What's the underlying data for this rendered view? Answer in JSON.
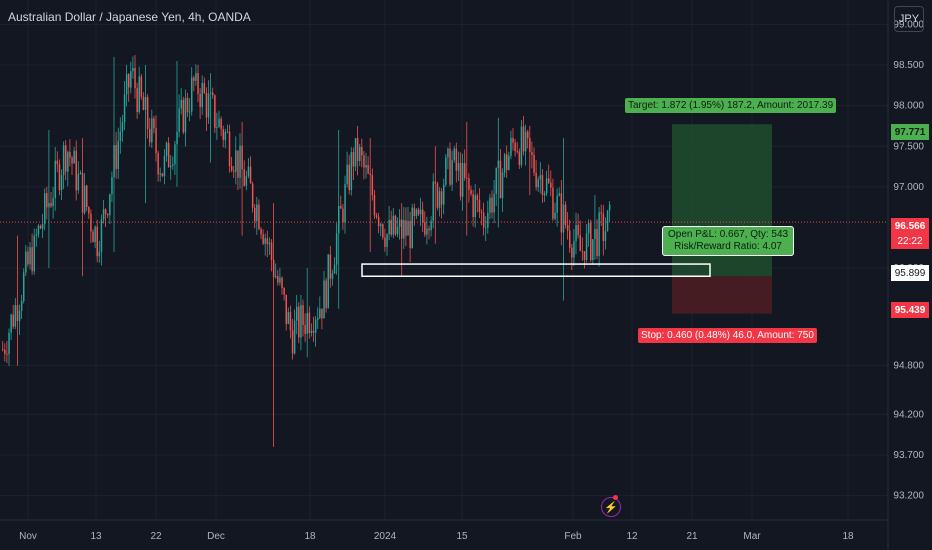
{
  "header": {
    "title": "Australian Dollar / Japanese Yen, 4h, OANDA",
    "currency": "JPY"
  },
  "position_tool": {
    "target_label": "Target: 1.872 (1.95%) 187.2, Amount: 2017.39",
    "stop_label": "Stop: 0.460 (0.48%) 46.0, Amount: 750",
    "pnl_line1": "Open P&L: 0.667, Qty: 543",
    "pnl_line2": "Risk/Reward Ratio: 4.07",
    "entry": 95.899,
    "target": 97.771,
    "stop": 95.439
  },
  "price_labels": {
    "target": "97.771",
    "last": "96.566",
    "countdown": "22:22",
    "entry": "95.899",
    "stop": "95.439"
  },
  "colors": {
    "up": "#26a69a",
    "down": "#ef5350",
    "target_zone": "#1e4a2e",
    "stop_zone": "#4a1d22",
    "bg": "#131722"
  },
  "chart_data": {
    "type": "candlestick",
    "title": "Australian Dollar / Japanese Yen, 4h, OANDA",
    "ylim": [
      92.9,
      99.3
    ],
    "y_ticks": [
      "99.000",
      "98.500",
      "98.000",
      "97.500",
      "97.000",
      "96.000",
      "94.800",
      "94.200",
      "93.700",
      "93.200"
    ],
    "x_ticks": [
      "Nov",
      "13",
      "22",
      "Dec",
      "18",
      "2024",
      "15",
      "Feb",
      "12",
      "21",
      "Mar",
      "18"
    ],
    "last_price": 96.566,
    "support_zone": [
      95.9,
      96.05
    ],
    "series": [
      {
        "start": 95.0,
        "end": 96.3,
        "low": 94.8,
        "high": 96.4
      },
      {
        "start": 96.3,
        "end": 97.5,
        "low": 96.0,
        "high": 97.7
      },
      {
        "start": 97.5,
        "end": 96.3,
        "low": 95.9,
        "high": 97.6
      },
      {
        "start": 96.3,
        "end": 98.4,
        "low": 96.2,
        "high": 98.6
      },
      {
        "start": 98.4,
        "end": 97.2,
        "low": 96.8,
        "high": 98.5
      },
      {
        "start": 97.2,
        "end": 98.3,
        "low": 97.0,
        "high": 98.55
      },
      {
        "start": 98.3,
        "end": 97.6,
        "low": 97.3,
        "high": 98.4
      },
      {
        "start": 97.6,
        "end": 96.7,
        "low": 96.4,
        "high": 97.8
      },
      {
        "start": 96.7,
        "end": 95.2,
        "low": 93.8,
        "high": 96.8
      },
      {
        "start": 95.2,
        "end": 95.6,
        "low": 94.9,
        "high": 96.0
      },
      {
        "start": 95.6,
        "end": 97.5,
        "low": 95.5,
        "high": 97.7
      },
      {
        "start": 97.5,
        "end": 96.4,
        "low": 96.2,
        "high": 97.6
      },
      {
        "start": 96.4,
        "end": 96.5,
        "low": 95.9,
        "high": 96.8
      },
      {
        "start": 96.5,
        "end": 97.3,
        "low": 96.3,
        "high": 97.5
      },
      {
        "start": 97.3,
        "end": 96.6,
        "low": 96.4,
        "high": 97.8
      },
      {
        "start": 96.6,
        "end": 97.6,
        "low": 96.5,
        "high": 97.85
      },
      {
        "start": 97.6,
        "end": 97.0,
        "low": 96.9,
        "high": 97.75
      },
      {
        "start": 97.0,
        "end": 96.2,
        "low": 95.6,
        "high": 97.6
      },
      {
        "start": 96.2,
        "end": 96.566,
        "low": 96.1,
        "high": 96.9
      }
    ]
  }
}
